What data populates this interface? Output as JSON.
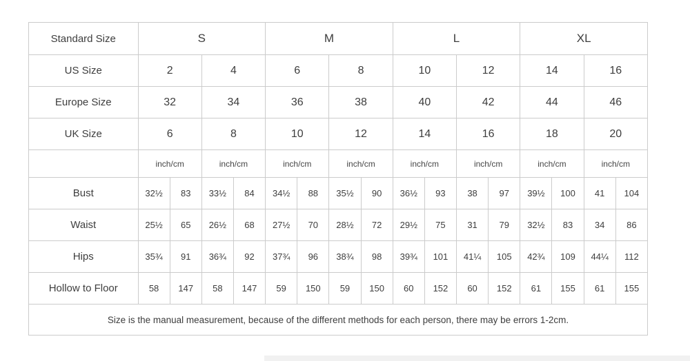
{
  "size_chart": {
    "header": {
      "label": "Standard Size",
      "sizes": [
        "S",
        "M",
        "L",
        "XL"
      ]
    },
    "size_rows": [
      {
        "label": "US Size",
        "values": [
          "2",
          "4",
          "6",
          "8",
          "10",
          "12",
          "14",
          "16"
        ]
      },
      {
        "label": "Europe Size",
        "values": [
          "32",
          "34",
          "36",
          "38",
          "40",
          "42",
          "44",
          "46"
        ]
      },
      {
        "label": "UK Size",
        "values": [
          "6",
          "8",
          "10",
          "12",
          "14",
          "16",
          "18",
          "20"
        ]
      }
    ],
    "unit_row": {
      "unit": "inch/cm",
      "repeat": 8
    },
    "measurement_rows": [
      {
        "label": "Bust",
        "values": [
          "32½",
          "83",
          "33½",
          "84",
          "34½",
          "88",
          "35½",
          "90",
          "36½",
          "93",
          "38",
          "97",
          "39½",
          "100",
          "41",
          "104"
        ]
      },
      {
        "label": "Waist",
        "values": [
          "25½",
          "65",
          "26½",
          "68",
          "27½",
          "70",
          "28½",
          "72",
          "29½",
          "75",
          "31",
          "79",
          "32½",
          "83",
          "34",
          "86"
        ]
      },
      {
        "label": "Hips",
        "values": [
          "35¾",
          "91",
          "36¾",
          "92",
          "37¾",
          "96",
          "38¾",
          "98",
          "39¾",
          "101",
          "41¼",
          "105",
          "42¾",
          "109",
          "44¼",
          "112"
        ]
      },
      {
        "label": "Hollow to Floor",
        "values": [
          "58",
          "147",
          "58",
          "147",
          "59",
          "150",
          "59",
          "150",
          "60",
          "152",
          "60",
          "152",
          "61",
          "155",
          "61",
          "155"
        ]
      }
    ],
    "note": "Size is the manual measurement, because of the different methods for each person, there may be errors 1-2cm."
  },
  "colors": {
    "border": "#cbcbcb",
    "text": "#3d3d3d",
    "background": "#ffffff"
  }
}
